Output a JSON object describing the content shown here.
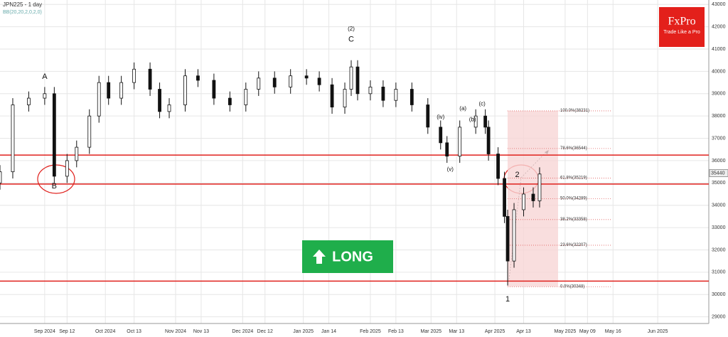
{
  "chart_data": {
    "type": "candlestick",
    "title": "JPN225 - 1 day",
    "indicator": "BB(20,20,2,0,2,0)",
    "logo": "FxPro",
    "slogan": "Trade Like a Pro",
    "signal": "LONG",
    "xlim": [
      0,
      222
    ],
    "ylim": [
      28700,
      43200
    ],
    "yticks": [
      29000,
      30000,
      31000,
      32000,
      33000,
      34000,
      35000,
      36000,
      37000,
      38000,
      39000,
      40000,
      41000,
      42000,
      43000
    ],
    "xticks": [
      {
        "value": 14,
        "label": "Sep 2024"
      },
      {
        "value": 21,
        "label": "Sep 12"
      },
      {
        "value": 33,
        "label": "Oct 2024"
      },
      {
        "value": 42,
        "label": "Oct 13"
      },
      {
        "value": 55,
        "label": "Nov 2024"
      },
      {
        "value": 63,
        "label": "Nov 13"
      },
      {
        "value": 76,
        "label": "Dec 2024"
      },
      {
        "value": 83,
        "label": "Dec 12"
      },
      {
        "value": 95,
        "label": "Jan 2025"
      },
      {
        "value": 103,
        "label": "Jan 14"
      },
      {
        "value": 116,
        "label": "Feb 2025"
      },
      {
        "value": 124,
        "label": "Feb 13"
      },
      {
        "value": 135,
        "label": "Mar 2025"
      },
      {
        "value": 143,
        "label": "Mar 13"
      },
      {
        "value": 155,
        "label": "Apr 2025"
      },
      {
        "value": 164,
        "label": "Apr 13"
      },
      {
        "value": 177,
        "label": "May 2025"
      },
      {
        "value": 184,
        "label": "May 09"
      },
      {
        "value": 192,
        "label": "May 16"
      },
      {
        "value": 206,
        "label": "Jun 2025"
      }
    ],
    "x": [
      0,
      4,
      9,
      14,
      17,
      21,
      24,
      28,
      31,
      34,
      38,
      42,
      47,
      50,
      53,
      58,
      62,
      67,
      72,
      77,
      81,
      86,
      91,
      96,
      100,
      104,
      108,
      110,
      112,
      116,
      120,
      124,
      129,
      134,
      138,
      140,
      144,
      149,
      152,
      153,
      156,
      158,
      159,
      161,
      164,
      167,
      169
    ],
    "open": [
      35000,
      35500,
      38500,
      38800,
      39000,
      35300,
      36000,
      36600,
      38000,
      39500,
      38800,
      39500,
      40100,
      39200,
      38200,
      38500,
      39800,
      39600,
      38800,
      38500,
      39200,
      39700,
      39300,
      39800,
      39700,
      39400,
      38400,
      39200,
      40200,
      39000,
      39300,
      38700,
      39200,
      38500,
      37500,
      36800,
      36200,
      37500,
      38000,
      37500,
      36300,
      35200,
      33500,
      31500,
      33800,
      34500,
      34200
    ],
    "high": [
      35800,
      38800,
      39100,
      39300,
      39300,
      36300,
      36900,
      38300,
      39800,
      39800,
      39800,
      40400,
      40400,
      39500,
      38800,
      40100,
      40100,
      39900,
      39100,
      39500,
      40000,
      40000,
      40100,
      40100,
      40000,
      39700,
      39500,
      40500,
      40500,
      39600,
      39600,
      39500,
      39500,
      38800,
      37800,
      37100,
      37800,
      38300,
      38300,
      37800,
      36600,
      35500,
      33800,
      34100,
      34800,
      34800,
      35700
    ],
    "low": [
      34700,
      35200,
      38200,
      38500,
      35000,
      35000,
      35700,
      36300,
      37700,
      38500,
      38500,
      39200,
      38900,
      37900,
      37900,
      38200,
      39300,
      38500,
      38200,
      38200,
      38900,
      39000,
      39000,
      39400,
      39100,
      38100,
      38100,
      38900,
      38700,
      38700,
      38400,
      38400,
      38200,
      37200,
      36500,
      35900,
      35900,
      37200,
      37200,
      36000,
      34900,
      33200,
      30400,
      31200,
      33500,
      33900,
      33900
    ],
    "close": [
      35500,
      38500,
      38800,
      39000,
      35300,
      36000,
      36600,
      38000,
      39500,
      38800,
      39500,
      40100,
      39200,
      38200,
      38500,
      39800,
      39600,
      38800,
      38500,
      39200,
      39700,
      39300,
      39800,
      39700,
      39400,
      38400,
      39200,
      40200,
      39000,
      39300,
      38700,
      39200,
      38500,
      37500,
      36800,
      36200,
      37500,
      38000,
      37500,
      36300,
      35200,
      33500,
      31500,
      33800,
      34500,
      34200,
      35400
    ],
    "last_price": 35440,
    "levels": [
      36250,
      34950,
      30600
    ],
    "level_color": "#e0211d",
    "fib_levels": [
      {
        "value": 38231,
        "label": "100.0%(38231)"
      },
      {
        "value": 36544,
        "label": "78.6%(36544)"
      },
      {
        "value": 35219,
        "label": "61.8%(35219)"
      },
      {
        "value": 34289,
        "label": "50.0%(34289)"
      },
      {
        "value": 33358,
        "label": "38.2%(33358)"
      },
      {
        "value": 32207,
        "label": "23.6%(32207)"
      },
      {
        "value": 30348,
        "label": "0.0%(30348)"
      }
    ],
    "annotations": [
      {
        "text": "A",
        "x": 14,
        "y": 39760
      },
      {
        "text": "B",
        "x": 17,
        "y": 34850
      },
      {
        "text": "(2)",
        "x": 110,
        "y": 41890
      },
      {
        "text": "C",
        "x": 110,
        "y": 41430
      },
      {
        "text": "1",
        "x": 159,
        "y": 29780
      },
      {
        "text": "2",
        "x": 162,
        "y": 35350
      },
      {
        "text": "(a)",
        "x": 145,
        "y": 38330
      },
      {
        "text": "(b)",
        "x": 148,
        "y": 37830
      },
      {
        "text": "(c)",
        "x": 151,
        "y": 38530
      },
      {
        "text": "(iv)",
        "x": 138,
        "y": 37950
      },
      {
        "text": "(v)",
        "x": 141,
        "y": 35600
      }
    ]
  }
}
